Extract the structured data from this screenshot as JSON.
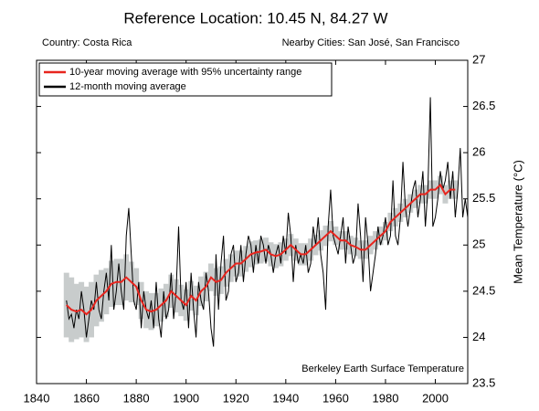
{
  "chart_data": {
    "type": "line",
    "title": "Reference Location: 10.45 N, 84.27 W",
    "subtitle_left": "Country: Costa Rica",
    "subtitle_right": "Nearby Cities: San José, San Francisco",
    "ylabel": "Mean Temperature (°C)",
    "annotation": "Berkeley Earth Surface Temperature",
    "xlim": [
      1840,
      2013
    ],
    "ylim": [
      23.5,
      27
    ],
    "xticks": [
      1840,
      1860,
      1880,
      1900,
      1920,
      1940,
      1960,
      1980,
      2000
    ],
    "yticks": [
      23.5,
      24,
      24.5,
      25,
      25.5,
      26,
      26.5,
      27
    ],
    "legend": "upper left",
    "series": [
      {
        "name": "10-year moving average with 95% uncertainty range",
        "color": "#e8251e",
        "band_color": "#c8cccc",
        "x": [
          1852,
          1854,
          1856,
          1858,
          1860,
          1862,
          1864,
          1866,
          1868,
          1870,
          1872,
          1874,
          1876,
          1878,
          1880,
          1882,
          1884,
          1886,
          1888,
          1890,
          1892,
          1894,
          1896,
          1898,
          1900,
          1902,
          1904,
          1906,
          1908,
          1910,
          1912,
          1914,
          1916,
          1918,
          1920,
          1922,
          1924,
          1926,
          1928,
          1930,
          1932,
          1934,
          1936,
          1938,
          1940,
          1942,
          1944,
          1946,
          1948,
          1950,
          1952,
          1954,
          1956,
          1958,
          1960,
          1962,
          1964,
          1966,
          1968,
          1970,
          1972,
          1974,
          1976,
          1978,
          1980,
          1982,
          1984,
          1986,
          1988,
          1990,
          1992,
          1994,
          1996,
          1998,
          2000,
          2002,
          2004,
          2006,
          2008
        ],
        "values": [
          24.35,
          24.3,
          24.28,
          24.3,
          24.25,
          24.3,
          24.4,
          24.45,
          24.5,
          24.58,
          24.6,
          24.6,
          24.65,
          24.6,
          24.55,
          24.4,
          24.3,
          24.28,
          24.3,
          24.35,
          24.4,
          24.5,
          24.45,
          24.4,
          24.35,
          24.45,
          24.4,
          24.5,
          24.55,
          24.65,
          24.6,
          24.62,
          24.7,
          24.75,
          24.8,
          24.8,
          24.85,
          24.9,
          24.92,
          24.93,
          24.95,
          24.9,
          24.88,
          24.9,
          24.95,
          25.0,
          24.95,
          24.9,
          24.9,
          24.95,
          25.0,
          25.05,
          25.1,
          25.15,
          25.1,
          25.05,
          25.05,
          25.0,
          24.98,
          24.95,
          24.95,
          25.0,
          25.05,
          25.1,
          25.15,
          25.25,
          25.3,
          25.35,
          25.4,
          25.45,
          25.5,
          25.55,
          25.55,
          25.6,
          25.6,
          25.65,
          25.55,
          25.6,
          25.6
        ],
        "uncertainty": [
          0.35,
          0.35,
          0.3,
          0.3,
          0.3,
          0.3,
          0.28,
          0.28,
          0.25,
          0.25,
          0.25,
          0.25,
          0.25,
          0.22,
          0.2,
          0.2,
          0.2,
          0.2,
          0.18,
          0.18,
          0.18,
          0.18,
          0.18,
          0.17,
          0.17,
          0.16,
          0.16,
          0.16,
          0.16,
          0.15,
          0.15,
          0.15,
          0.15,
          0.15,
          0.14,
          0.14,
          0.14,
          0.14,
          0.13,
          0.13,
          0.13,
          0.13,
          0.13,
          0.13,
          0.12,
          0.12,
          0.12,
          0.12,
          0.12,
          0.12,
          0.11,
          0.11,
          0.11,
          0.11,
          0.1,
          0.1,
          0.1,
          0.1,
          0.1,
          0.1,
          0.1,
          0.1,
          0.1,
          0.1,
          0.1,
          0.1,
          0.1,
          0.1,
          0.1,
          0.1,
          0.1,
          0.1,
          0.1,
          0.1,
          0.1,
          0.1,
          0.1,
          0.1,
          0.1
        ]
      },
      {
        "name": "12-month moving average",
        "color": "#000000",
        "x": [
          1852,
          1853,
          1854,
          1855,
          1856,
          1857,
          1858,
          1859,
          1860,
          1861,
          1862,
          1863,
          1864,
          1865,
          1866,
          1867,
          1868,
          1869,
          1870,
          1871,
          1872,
          1873,
          1874,
          1875,
          1876,
          1877,
          1878,
          1879,
          1880,
          1881,
          1882,
          1883,
          1884,
          1885,
          1886,
          1887,
          1888,
          1889,
          1890,
          1891,
          1892,
          1893,
          1894,
          1895,
          1896,
          1897,
          1898,
          1899,
          1900,
          1901,
          1902,
          1903,
          1904,
          1905,
          1906,
          1907,
          1908,
          1909,
          1910,
          1911,
          1912,
          1913,
          1914,
          1915,
          1916,
          1917,
          1918,
          1919,
          1920,
          1921,
          1922,
          1923,
          1924,
          1925,
          1926,
          1927,
          1928,
          1929,
          1930,
          1931,
          1932,
          1933,
          1934,
          1935,
          1936,
          1937,
          1938,
          1939,
          1940,
          1941,
          1942,
          1943,
          1944,
          1945,
          1946,
          1947,
          1948,
          1949,
          1950,
          1951,
          1952,
          1953,
          1954,
          1955,
          1956,
          1957,
          1958,
          1959,
          1960,
          1961,
          1962,
          1963,
          1964,
          1965,
          1966,
          1967,
          1968,
          1969,
          1970,
          1971,
          1972,
          1973,
          1974,
          1975,
          1976,
          1977,
          1978,
          1979,
          1980,
          1981,
          1982,
          1983,
          1984,
          1985,
          1986,
          1987,
          1988,
          1989,
          1990,
          1991,
          1992,
          1993,
          1994,
          1995,
          1996,
          1997,
          1998,
          1999,
          2000,
          2001,
          2002,
          2003,
          2004,
          2005,
          2006,
          2007,
          2008,
          2009,
          2010,
          2011,
          2012,
          2013
        ],
        "values": [
          24.4,
          24.2,
          24.25,
          24.1,
          24.3,
          24.2,
          24.5,
          24.3,
          24.0,
          24.2,
          24.4,
          24.3,
          24.6,
          24.3,
          24.2,
          24.5,
          24.7,
          24.4,
          25.0,
          24.3,
          24.5,
          24.8,
          24.5,
          24.3,
          25.1,
          25.4,
          24.9,
          24.4,
          24.3,
          24.6,
          24.1,
          24.5,
          24.3,
          24.2,
          24.4,
          24.1,
          24.6,
          24.2,
          24.0,
          24.5,
          24.2,
          24.3,
          24.7,
          24.2,
          24.5,
          25.2,
          24.4,
          24.3,
          24.6,
          24.1,
          24.7,
          24.3,
          24.0,
          24.6,
          24.4,
          24.3,
          24.7,
          24.5,
          24.1,
          23.9,
          24.9,
          24.3,
          24.8,
          25.1,
          24.4,
          24.5,
          24.9,
          25.0,
          24.6,
          24.7,
          25.0,
          24.6,
          24.9,
          25.1,
          25.0,
          24.7,
          25.0,
          24.8,
          25.1,
          25.0,
          24.8,
          25.0,
          24.9,
          24.7,
          24.9,
          25.0,
          24.8,
          25.1,
          24.9,
          25.35,
          25.1,
          24.6,
          25.0,
          24.8,
          24.9,
          24.8,
          25.0,
          24.7,
          24.8,
          25.2,
          25.0,
          25.3,
          24.9,
          24.7,
          24.3,
          25.2,
          25.6,
          25.1,
          25.0,
          24.9,
          25.1,
          25.3,
          24.8,
          25.2,
          25.0,
          24.8,
          24.9,
          25.45,
          25.1,
          24.6,
          25.3,
          25.0,
          24.5,
          24.7,
          24.9,
          25.2,
          25.0,
          25.1,
          25.3,
          25.0,
          25.1,
          25.7,
          25.1,
          25.0,
          25.3,
          25.9,
          25.4,
          25.2,
          25.4,
          25.6,
          25.7,
          25.3,
          25.5,
          25.8,
          25.2,
          25.6,
          26.6,
          25.2,
          25.3,
          25.5,
          25.8,
          25.6,
          25.7,
          25.9,
          25.5,
          25.8,
          25.3,
          25.6,
          26.05,
          25.3,
          25.5,
          25.3
        ]
      }
    ]
  }
}
